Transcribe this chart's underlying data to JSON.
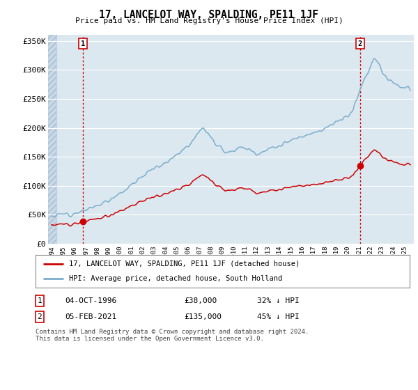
{
  "title": "17, LANCELOT WAY, SPALDING, PE11 1JF",
  "subtitle": "Price paid vs. HM Land Registry's House Price Index (HPI)",
  "ylim": [
    0,
    360000
  ],
  "xlim_start": 1993.7,
  "xlim_end": 2025.8,
  "transaction1_date": 1996.75,
  "transaction1_price": 38000,
  "transaction2_date": 2021.08,
  "transaction2_price": 135000,
  "legend_line1": "17, LANCELOT WAY, SPALDING, PE11 1JF (detached house)",
  "legend_line2": "HPI: Average price, detached house, South Holland",
  "footnote": "Contains HM Land Registry data © Crown copyright and database right 2024.\nThis data is licensed under the Open Government Licence v3.0.",
  "line_color_red": "#cc0000",
  "line_color_blue": "#7aadcc",
  "background_chart": "#dce8f0",
  "background_hatch": "#c8d8e8",
  "grid_color": "#ffffff",
  "dashed_line_color": "#cc0000",
  "hpi_seed": 12,
  "red_seed": 99,
  "ytick_labels": [
    "£0",
    "£50K",
    "£100K",
    "£150K",
    "£200K",
    "£250K",
    "£300K",
    "£350K"
  ],
  "ytick_vals": [
    0,
    50000,
    100000,
    150000,
    200000,
    250000,
    300000,
    350000
  ]
}
